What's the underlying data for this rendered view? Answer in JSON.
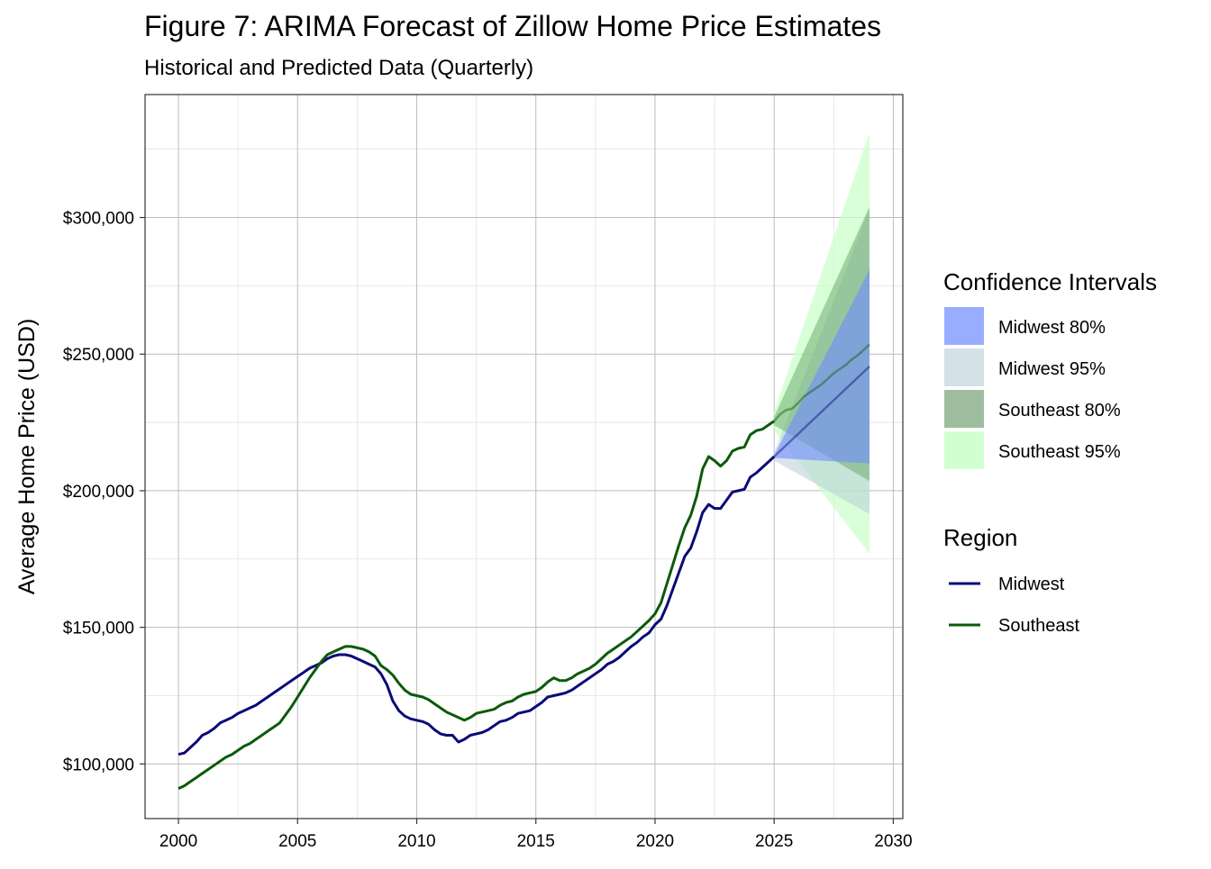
{
  "chart_data": {
    "type": "line",
    "title": "Figure 7: ARIMA Forecast of Zillow Home Price Estimates",
    "subtitle": "Historical and Predicted Data (Quarterly)",
    "xlabel": "",
    "ylabel": "Average Home Price (USD)",
    "xlim": [
      1998.6,
      2030.4
    ],
    "ylim": [
      80000,
      345000
    ],
    "x_ticks": [
      2000,
      2005,
      2010,
      2015,
      2020,
      2025,
      2030
    ],
    "x_tick_labels": [
      "2000",
      "2005",
      "2010",
      "2015",
      "2020",
      "2025",
      "2030"
    ],
    "y_ticks": [
      100000,
      150000,
      200000,
      250000,
      300000
    ],
    "y_tick_labels": [
      "$100,000",
      "$150,000",
      "$200,000",
      "$250,000",
      "$300,000"
    ],
    "y_minor_ticks": [
      125000,
      175000,
      225000,
      275000,
      325000
    ],
    "x_minor_ticks": [
      2002.5,
      2007.5,
      2012.5,
      2017.5,
      2022.5,
      2027.5
    ],
    "grid": true,
    "legend_position": "right",
    "series": [
      {
        "name": "Midwest",
        "color": "#0a0a78",
        "points": [
          [
            2000.0,
            103500
          ],
          [
            2000.25,
            104000
          ],
          [
            2000.5,
            106000
          ],
          [
            2000.75,
            108000
          ],
          [
            2001.0,
            110500
          ],
          [
            2001.25,
            111500
          ],
          [
            2001.5,
            113000
          ],
          [
            2001.75,
            115000
          ],
          [
            2002.0,
            116000
          ],
          [
            2002.25,
            117000
          ],
          [
            2002.5,
            118500
          ],
          [
            2002.75,
            119500
          ],
          [
            2003.0,
            120500
          ],
          [
            2003.25,
            121500
          ],
          [
            2003.5,
            123000
          ],
          [
            2003.75,
            124500
          ],
          [
            2004.0,
            126000
          ],
          [
            2004.25,
            127500
          ],
          [
            2004.5,
            129000
          ],
          [
            2004.75,
            130500
          ],
          [
            2005.0,
            132000
          ],
          [
            2005.25,
            133500
          ],
          [
            2005.5,
            135000
          ],
          [
            2005.75,
            136000
          ],
          [
            2006.0,
            137000
          ],
          [
            2006.25,
            138500
          ],
          [
            2006.5,
            139500
          ],
          [
            2006.75,
            140000
          ],
          [
            2007.0,
            140000
          ],
          [
            2007.25,
            139500
          ],
          [
            2007.5,
            138500
          ],
          [
            2007.75,
            137500
          ],
          [
            2008.0,
            136500
          ],
          [
            2008.25,
            135500
          ],
          [
            2008.5,
            133000
          ],
          [
            2008.75,
            129000
          ],
          [
            2009.0,
            123000
          ],
          [
            2009.25,
            119500
          ],
          [
            2009.5,
            117500
          ],
          [
            2009.75,
            116500
          ],
          [
            2010.0,
            116000
          ],
          [
            2010.25,
            115500
          ],
          [
            2010.5,
            114500
          ],
          [
            2010.75,
            112500
          ],
          [
            2011.0,
            111000
          ],
          [
            2011.25,
            110500
          ],
          [
            2011.5,
            110500
          ],
          [
            2011.75,
            108000
          ],
          [
            2012.0,
            109000
          ],
          [
            2012.25,
            110500
          ],
          [
            2012.5,
            111000
          ],
          [
            2012.75,
            111500
          ],
          [
            2013.0,
            112500
          ],
          [
            2013.25,
            114000
          ],
          [
            2013.5,
            115500
          ],
          [
            2013.75,
            116000
          ],
          [
            2014.0,
            117000
          ],
          [
            2014.25,
            118500
          ],
          [
            2014.5,
            119000
          ],
          [
            2014.75,
            119500
          ],
          [
            2015.0,
            121000
          ],
          [
            2015.25,
            122500
          ],
          [
            2015.5,
            124500
          ],
          [
            2015.75,
            125000
          ],
          [
            2016.0,
            125500
          ],
          [
            2016.25,
            126000
          ],
          [
            2016.5,
            127000
          ],
          [
            2016.75,
            128500
          ],
          [
            2017.0,
            130000
          ],
          [
            2017.25,
            131500
          ],
          [
            2017.5,
            133000
          ],
          [
            2017.75,
            134500
          ],
          [
            2018.0,
            136500
          ],
          [
            2018.25,
            137500
          ],
          [
            2018.5,
            139000
          ],
          [
            2018.75,
            141000
          ],
          [
            2019.0,
            143000
          ],
          [
            2019.25,
            144500
          ],
          [
            2019.5,
            146500
          ],
          [
            2019.75,
            148000
          ],
          [
            2020.0,
            151000
          ],
          [
            2020.25,
            153000
          ],
          [
            2020.5,
            158000
          ],
          [
            2020.75,
            164000
          ],
          [
            2021.0,
            170000
          ],
          [
            2021.25,
            176000
          ],
          [
            2021.5,
            179000
          ],
          [
            2021.75,
            185000
          ],
          [
            2022.0,
            192000
          ],
          [
            2022.25,
            195000
          ],
          [
            2022.5,
            193500
          ],
          [
            2022.75,
            193500
          ],
          [
            2023.0,
            196500
          ],
          [
            2023.25,
            199500
          ],
          [
            2023.5,
            200000
          ],
          [
            2023.75,
            200500
          ],
          [
            2024.0,
            205000
          ],
          [
            2024.25,
            206500
          ],
          [
            2024.5,
            208500
          ],
          [
            2024.75,
            210500
          ],
          [
            2025.0,
            212500
          ]
        ],
        "forecast": [
          [
            2025.0,
            212500
          ],
          [
            2029.0,
            245500
          ]
        ]
      },
      {
        "name": "Southeast",
        "color": "#0b5a0b",
        "points": [
          [
            2000.0,
            91000
          ],
          [
            2000.25,
            92000
          ],
          [
            2000.5,
            93500
          ],
          [
            2000.75,
            95000
          ],
          [
            2001.0,
            96500
          ],
          [
            2001.25,
            98000
          ],
          [
            2001.5,
            99500
          ],
          [
            2001.75,
            101000
          ],
          [
            2002.0,
            102500
          ],
          [
            2002.25,
            103500
          ],
          [
            2002.5,
            105000
          ],
          [
            2002.75,
            106500
          ],
          [
            2003.0,
            107500
          ],
          [
            2003.25,
            109000
          ],
          [
            2003.5,
            110500
          ],
          [
            2003.75,
            112000
          ],
          [
            2004.0,
            113500
          ],
          [
            2004.25,
            115000
          ],
          [
            2004.5,
            118000
          ],
          [
            2004.75,
            121000
          ],
          [
            2005.0,
            124500
          ],
          [
            2005.25,
            128000
          ],
          [
            2005.5,
            131500
          ],
          [
            2005.75,
            134500
          ],
          [
            2006.0,
            137500
          ],
          [
            2006.25,
            140000
          ],
          [
            2006.5,
            141000
          ],
          [
            2006.75,
            142000
          ],
          [
            2007.0,
            143000
          ],
          [
            2007.25,
            143000
          ],
          [
            2007.5,
            142500
          ],
          [
            2007.75,
            142000
          ],
          [
            2008.0,
            141000
          ],
          [
            2008.25,
            139500
          ],
          [
            2008.5,
            136000
          ],
          [
            2008.75,
            134500
          ],
          [
            2009.0,
            132500
          ],
          [
            2009.25,
            129500
          ],
          [
            2009.5,
            127000
          ],
          [
            2009.75,
            125500
          ],
          [
            2010.0,
            125000
          ],
          [
            2010.25,
            124500
          ],
          [
            2010.5,
            123500
          ],
          [
            2010.75,
            122000
          ],
          [
            2011.0,
            120500
          ],
          [
            2011.25,
            119000
          ],
          [
            2011.5,
            118000
          ],
          [
            2011.75,
            117000
          ],
          [
            2012.0,
            116000
          ],
          [
            2012.25,
            117000
          ],
          [
            2012.5,
            118500
          ],
          [
            2012.75,
            119000
          ],
          [
            2013.0,
            119500
          ],
          [
            2013.25,
            120000
          ],
          [
            2013.5,
            121500
          ],
          [
            2013.75,
            122500
          ],
          [
            2014.0,
            123000
          ],
          [
            2014.25,
            124500
          ],
          [
            2014.5,
            125500
          ],
          [
            2014.75,
            126000
          ],
          [
            2015.0,
            126500
          ],
          [
            2015.25,
            128000
          ],
          [
            2015.5,
            130000
          ],
          [
            2015.75,
            131500
          ],
          [
            2016.0,
            130500
          ],
          [
            2016.25,
            130500
          ],
          [
            2016.5,
            131500
          ],
          [
            2016.75,
            133000
          ],
          [
            2017.0,
            134000
          ],
          [
            2017.25,
            135000
          ],
          [
            2017.5,
            136500
          ],
          [
            2017.75,
            138500
          ],
          [
            2018.0,
            140500
          ],
          [
            2018.25,
            142000
          ],
          [
            2018.5,
            143500
          ],
          [
            2018.75,
            145000
          ],
          [
            2019.0,
            146500
          ],
          [
            2019.25,
            148500
          ],
          [
            2019.5,
            150500
          ],
          [
            2019.75,
            152500
          ],
          [
            2020.0,
            155000
          ],
          [
            2020.25,
            159000
          ],
          [
            2020.5,
            166000
          ],
          [
            2020.75,
            173000
          ],
          [
            2021.0,
            180000
          ],
          [
            2021.25,
            186500
          ],
          [
            2021.5,
            191000
          ],
          [
            2021.75,
            198000
          ],
          [
            2022.0,
            208000
          ],
          [
            2022.25,
            212500
          ],
          [
            2022.5,
            211000
          ],
          [
            2022.75,
            209000
          ],
          [
            2023.0,
            211000
          ],
          [
            2023.25,
            214500
          ],
          [
            2023.5,
            215500
          ],
          [
            2023.75,
            216000
          ],
          [
            2024.0,
            220500
          ],
          [
            2024.25,
            222000
          ],
          [
            2024.5,
            222500
          ],
          [
            2024.75,
            224000
          ],
          [
            2025.0,
            225500
          ]
        ],
        "forecast": [
          [
            2025.0,
            225500
          ],
          [
            2025.25,
            228000
          ],
          [
            2025.5,
            229500
          ],
          [
            2025.75,
            230000
          ],
          [
            2026.0,
            232000
          ],
          [
            2026.25,
            234500
          ],
          [
            2026.5,
            236000
          ],
          [
            2026.75,
            237500
          ],
          [
            2027.0,
            239000
          ],
          [
            2027.25,
            241000
          ],
          [
            2027.5,
            243000
          ],
          [
            2027.75,
            244500
          ],
          [
            2028.0,
            246000
          ],
          [
            2028.25,
            248000
          ],
          [
            2028.5,
            249500
          ],
          [
            2028.75,
            251500
          ],
          [
            2029.0,
            253500
          ]
        ]
      }
    ],
    "bands": [
      {
        "name": "Southeast 95%",
        "color": "#c8ffc8",
        "opacity": 0.7,
        "x": [
          2025.0,
          2029.0
        ],
        "lower": [
          222000,
          177000
        ],
        "upper": [
          229000,
          331000
        ]
      },
      {
        "name": "Midwest 95%",
        "color": "#b9cdd8",
        "opacity": 0.55,
        "x": [
          2025.0,
          2029.0
        ],
        "lower": [
          211000,
          191500
        ],
        "upper": [
          214000,
          303000
        ]
      },
      {
        "name": "Southeast 80%",
        "color": "#6fad6f",
        "opacity": 0.55,
        "x": [
          2025.0,
          2029.0
        ],
        "lower": [
          224000,
          203500
        ],
        "upper": [
          227000,
          304000
        ]
      },
      {
        "name": "Midwest 80%",
        "color": "#6f8cff",
        "opacity": 0.6,
        "x": [
          2025.0,
          2029.0
        ],
        "lower": [
          212000,
          210000
        ],
        "upper": [
          213000,
          281000
        ]
      }
    ]
  },
  "legend": {
    "ci_title": "Confidence Intervals",
    "ci_items": [
      {
        "label": "Midwest 80%",
        "color": "#99adff"
      },
      {
        "label": "Midwest 95%",
        "color": "#d4e1e7"
      },
      {
        "label": "Southeast 80%",
        "color": "#9ebd9e"
      },
      {
        "label": "Southeast 95%",
        "color": "#d2ffd2"
      }
    ],
    "region_title": "Region",
    "region_items": [
      {
        "label": "Midwest",
        "color": "#0a0a78"
      },
      {
        "label": "Southeast",
        "color": "#0b5a0b"
      }
    ]
  }
}
